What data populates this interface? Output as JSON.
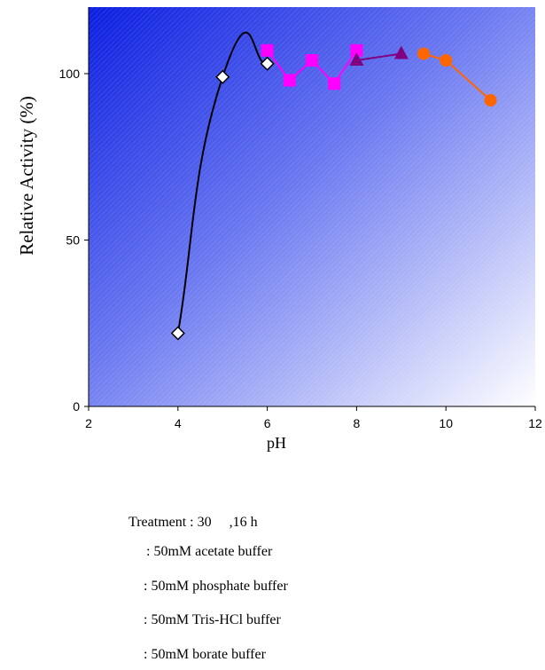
{
  "chart_data": {
    "type": "line",
    "title": "",
    "xlabel": "pH",
    "ylabel": "Relative Activity (%)",
    "xlim": [
      2,
      12
    ],
    "ylim": [
      0,
      120
    ],
    "x_ticks": [
      "2",
      "4",
      "6",
      "8",
      "10",
      "12"
    ],
    "y_ticks": [
      "0",
      "50",
      "100"
    ],
    "background": "blue-to-white diagonal gradient with hatching",
    "grid": false,
    "series": [
      {
        "marker": "diamond",
        "color": "#000000",
        "fill": "#ffffff",
        "smooth": true,
        "x": [
          4,
          5,
          6
        ],
        "y": [
          22,
          99,
          103
        ]
      },
      {
        "marker": "square",
        "color": "#ff00ff",
        "fill": "#ff00ff",
        "smooth": false,
        "x": [
          6,
          6.5,
          7,
          7.5,
          8
        ],
        "y": [
          107,
          98,
          104,
          97,
          107
        ]
      },
      {
        "marker": "triangle",
        "color": "#800080",
        "fill": "#800080",
        "smooth": false,
        "x": [
          8,
          9
        ],
        "y": [
          104,
          106
        ]
      },
      {
        "marker": "circle",
        "color": "#ff6600",
        "fill": "#ff6600",
        "smooth": false,
        "x": [
          9.5,
          10,
          11
        ],
        "y": [
          106,
          104,
          92
        ]
      }
    ]
  },
  "notes": {
    "treatment": "Treatment : 30　 ,16 h",
    "buffers": [
      ": 50mM acetate buffer",
      ": 50mM phosphate buffer",
      ": 50mM Tris-HCl buffer",
      ": 50mM borate buffer"
    ]
  }
}
